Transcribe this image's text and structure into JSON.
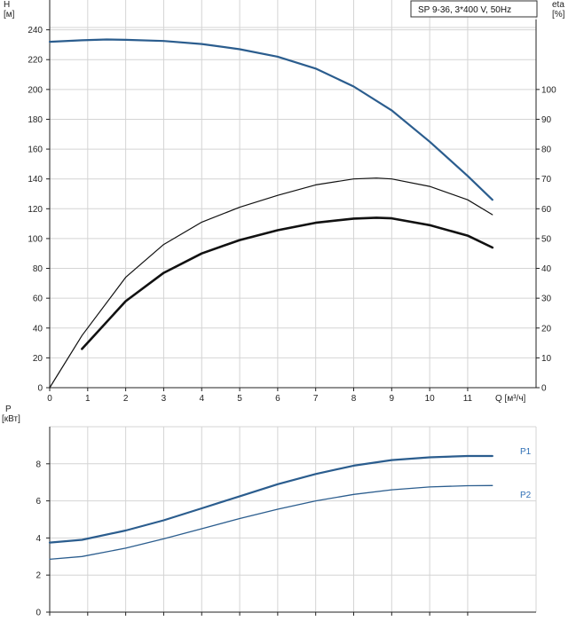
{
  "legend_box": "SP 9-36, 3*400 V, 50Hz",
  "colors": {
    "blue": "#2b5d8e",
    "black": "#111111",
    "grid": "#d4d4d4",
    "axis": "#222222",
    "label_blue": "#2f6fb5"
  },
  "chart_data": [
    {
      "type": "line",
      "title": "",
      "xlabel": "Q [м³/ч]",
      "ylabel": "H\n[м]",
      "y2label": "eta\n[%]",
      "xlim": [
        0,
        12.8
      ],
      "ylim": [
        0,
        260
      ],
      "y2lim": [
        0,
        130
      ],
      "x_ticks": [
        0,
        1,
        2,
        3,
        4,
        5,
        6,
        7,
        8,
        9,
        10,
        11
      ],
      "y_ticks": [
        0,
        20,
        40,
        60,
        80,
        100,
        120,
        140,
        160,
        180,
        200,
        220,
        240
      ],
      "y2_ticks": [
        0,
        10,
        20,
        30,
        40,
        50,
        60,
        70,
        80,
        90,
        100
      ],
      "grid": true,
      "series": [
        {
          "id": "H",
          "axis": "left",
          "color": "#2b5d8e",
          "width": 2.2,
          "x": [
            0,
            0.85,
            1.5,
            2,
            3,
            4,
            5,
            6,
            7,
            8,
            9,
            10,
            11,
            11.65
          ],
          "y": [
            232,
            233,
            233.5,
            233.3,
            232.5,
            230.5,
            227,
            222,
            214,
            202,
            186,
            165,
            142,
            126
          ]
        },
        {
          "id": "eta_pump",
          "axis": "right",
          "color": "#111111",
          "width": 1.2,
          "x": [
            0,
            0.85,
            2,
            3,
            4,
            5,
            6,
            7,
            8,
            8.6,
            9,
            10,
            11,
            11.65
          ],
          "y": [
            0,
            17.5,
            37,
            48,
            55.5,
            60.5,
            64.5,
            68,
            70,
            70.3,
            70,
            67.5,
            63,
            58
          ]
        },
        {
          "id": "eta_total",
          "axis": "right",
          "color": "#111111",
          "width": 2.6,
          "x": [
            0.85,
            2,
            3,
            4,
            5,
            6,
            7,
            8,
            8.6,
            9,
            10,
            11,
            11.65
          ],
          "y": [
            13,
            29,
            38.5,
            45,
            49.5,
            52.8,
            55.3,
            56.7,
            57,
            56.8,
            54.5,
            51,
            47
          ]
        }
      ]
    },
    {
      "type": "line",
      "title": "",
      "xlabel": "",
      "ylabel": "P\n[кВт]",
      "xlim": [
        0,
        12.8
      ],
      "ylim": [
        0,
        10
      ],
      "y_ticks": [
        0,
        2,
        4,
        6,
        8
      ],
      "grid": true,
      "series": [
        {
          "name": "P1",
          "color": "#2b5d8e",
          "width": 2.2,
          "x": [
            0,
            0.85,
            2,
            3,
            4,
            5,
            6,
            7,
            8,
            9,
            10,
            11,
            11.65
          ],
          "y": [
            3.75,
            3.9,
            4.4,
            4.95,
            5.6,
            6.25,
            6.9,
            7.45,
            7.9,
            8.2,
            8.35,
            8.42,
            8.42
          ]
        },
        {
          "name": "P2",
          "color": "#2b5d8e",
          "width": 1.3,
          "x": [
            0,
            0.85,
            2,
            3,
            4,
            5,
            6,
            7,
            8,
            9,
            10,
            11,
            11.65
          ],
          "y": [
            2.85,
            3.0,
            3.45,
            3.95,
            4.5,
            5.05,
            5.55,
            6.0,
            6.35,
            6.6,
            6.75,
            6.82,
            6.83
          ]
        }
      ]
    }
  ]
}
